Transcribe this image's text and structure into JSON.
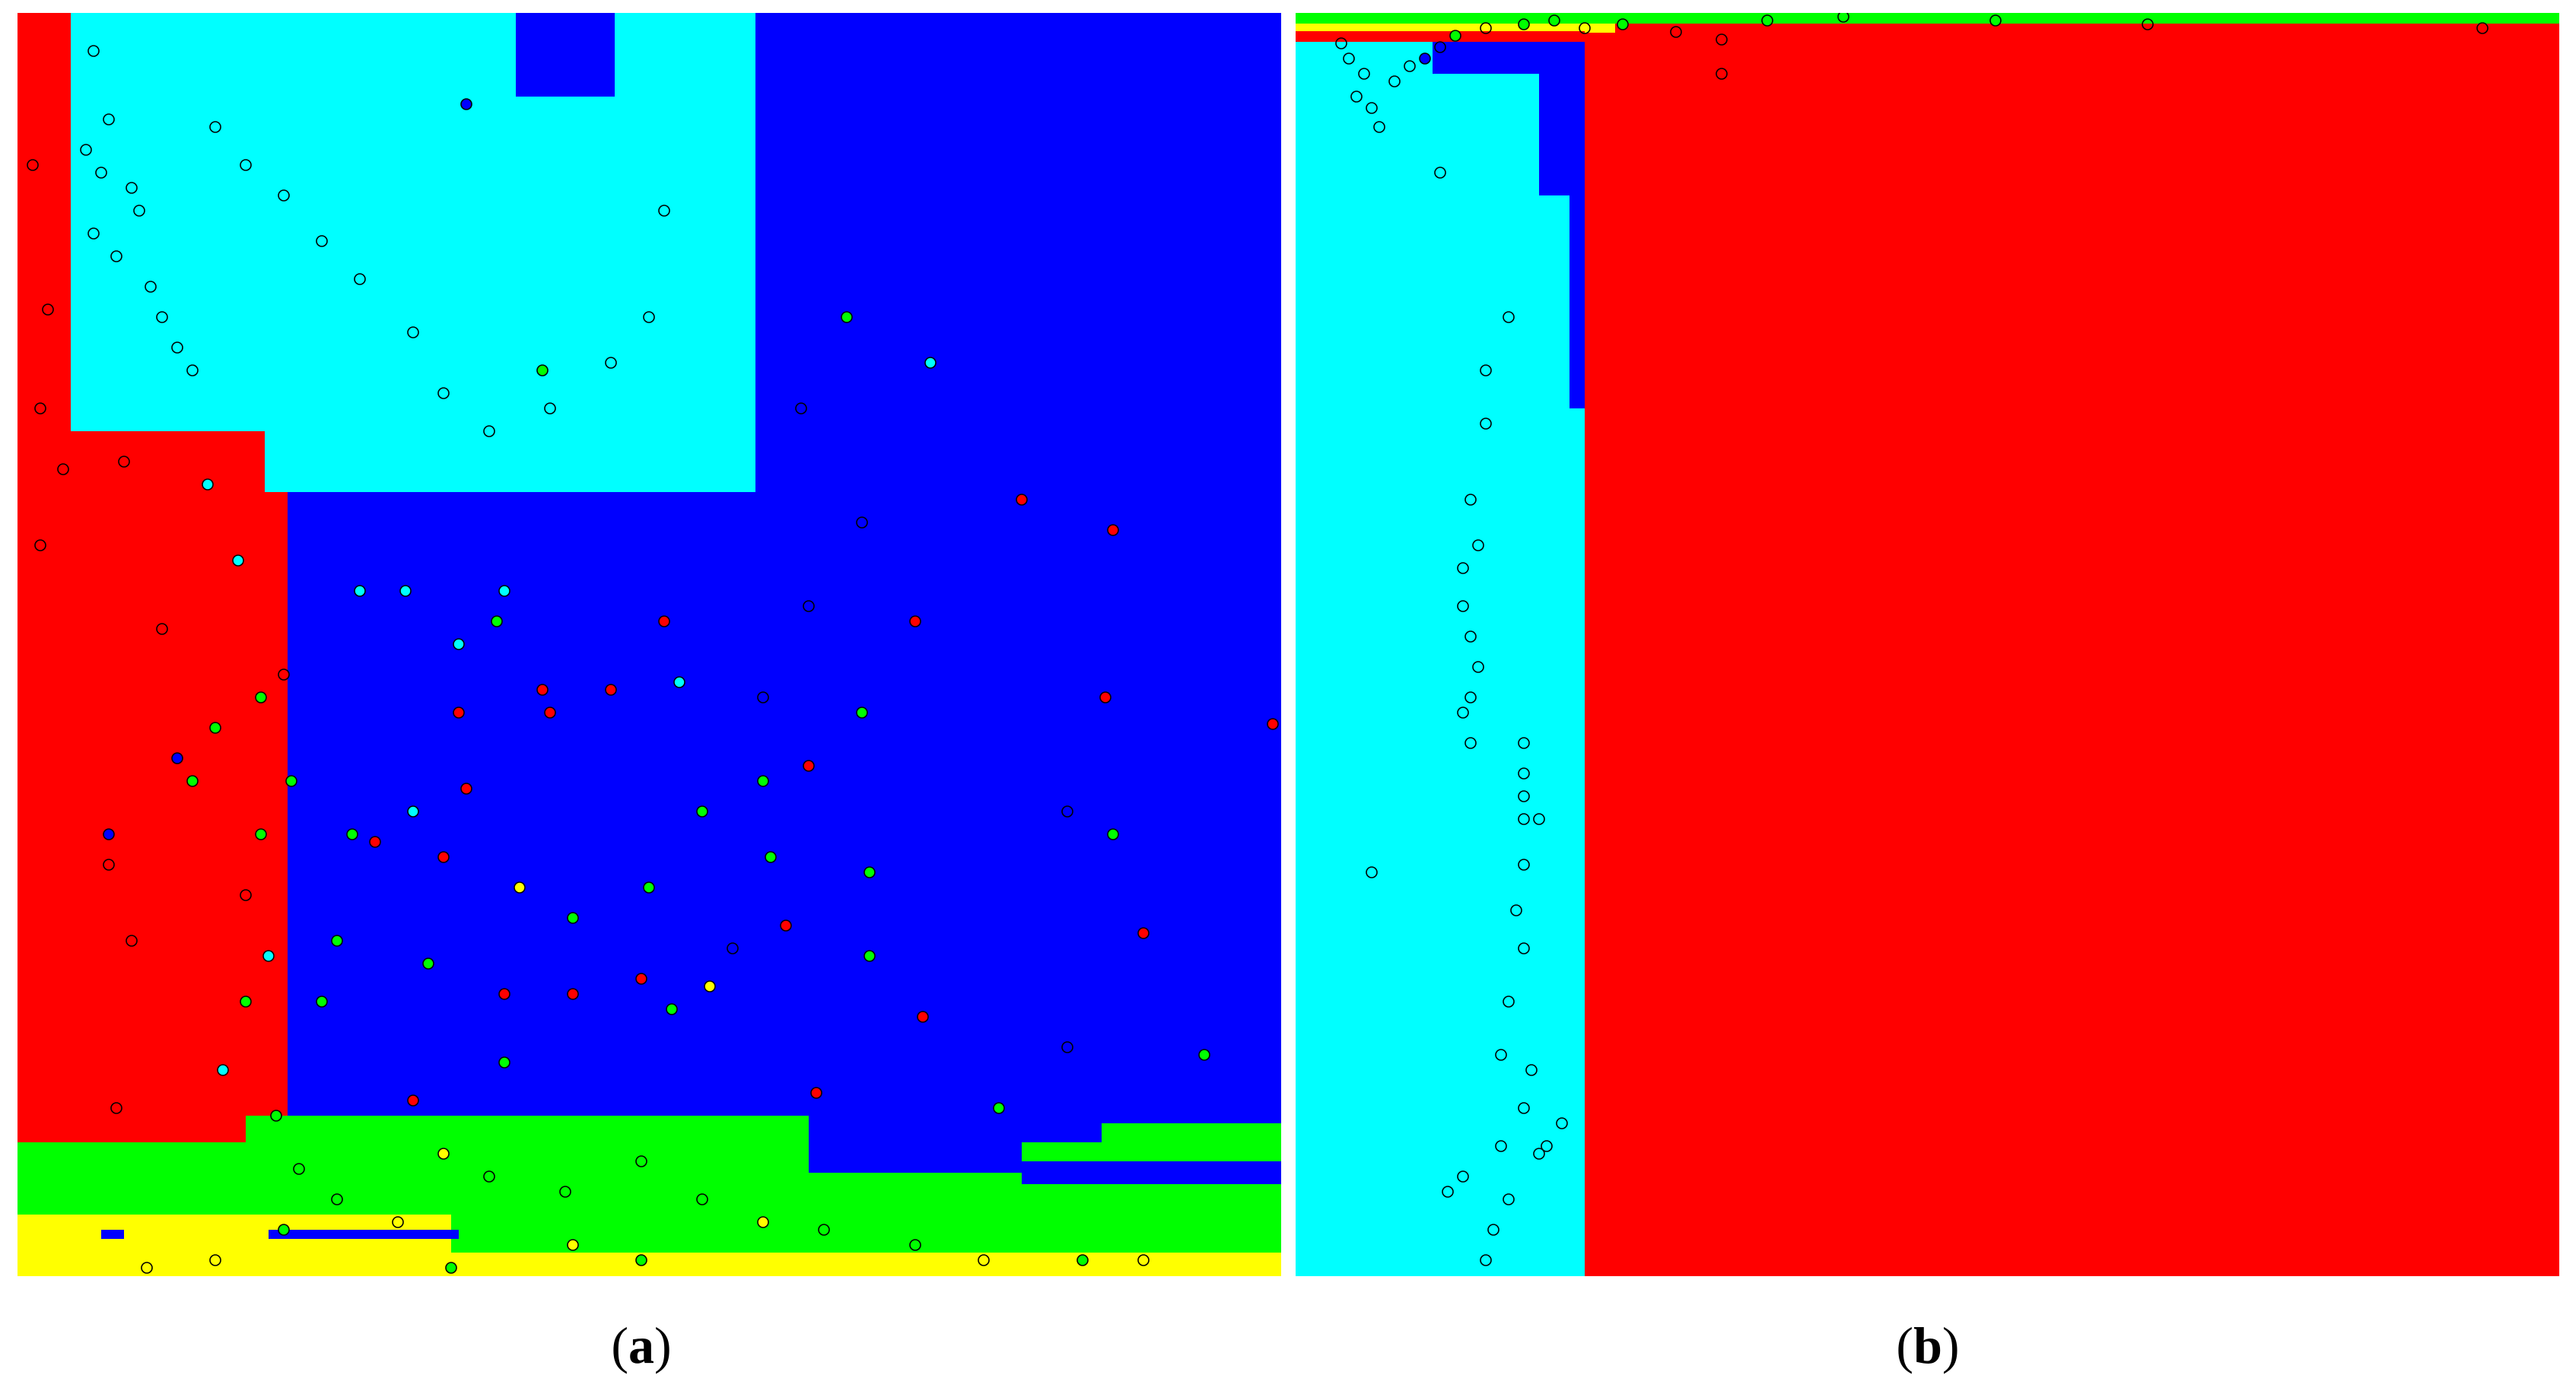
{
  "colors": {
    "red": "#ff0000",
    "blue": "#0000ff",
    "cyan": "#00ffff",
    "green": "#00ff00",
    "yellow": "#ffff00"
  },
  "panels": [
    {
      "id": "a",
      "label_open": "(",
      "label_letter": "a",
      "label_close": ")"
    },
    {
      "id": "b",
      "label_open": "(",
      "label_letter": "b",
      "label_close": ")"
    }
  ]
}
